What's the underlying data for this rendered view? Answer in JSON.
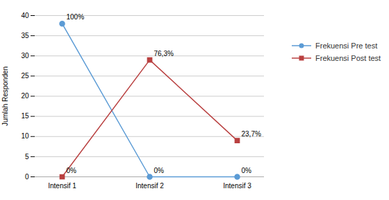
{
  "chart_data": {
    "type": "line",
    "categories": [
      "Intensif 1",
      "Intensif 2",
      "Intensif 3"
    ],
    "series": [
      {
        "name": "Frekuensi Pre test",
        "color": "#5B9BD5",
        "marker": "circle",
        "values": [
          38,
          0,
          0
        ],
        "value_labels": [
          "100%",
          "0%",
          "0%"
        ]
      },
      {
        "name": "Frekuensi Post test",
        "color": "#B94040",
        "marker": "square",
        "values": [
          0,
          29,
          9
        ],
        "value_labels": [
          "0%",
          "76,3%",
          "23,7%"
        ]
      }
    ],
    "ylabel": "Jumlah Responden",
    "ylim": [
      0,
      40
    ],
    "yticks": [
      0,
      5,
      10,
      15,
      20,
      25,
      30,
      35,
      40
    ],
    "grid": true,
    "legend": "right",
    "data_labels": true
  }
}
